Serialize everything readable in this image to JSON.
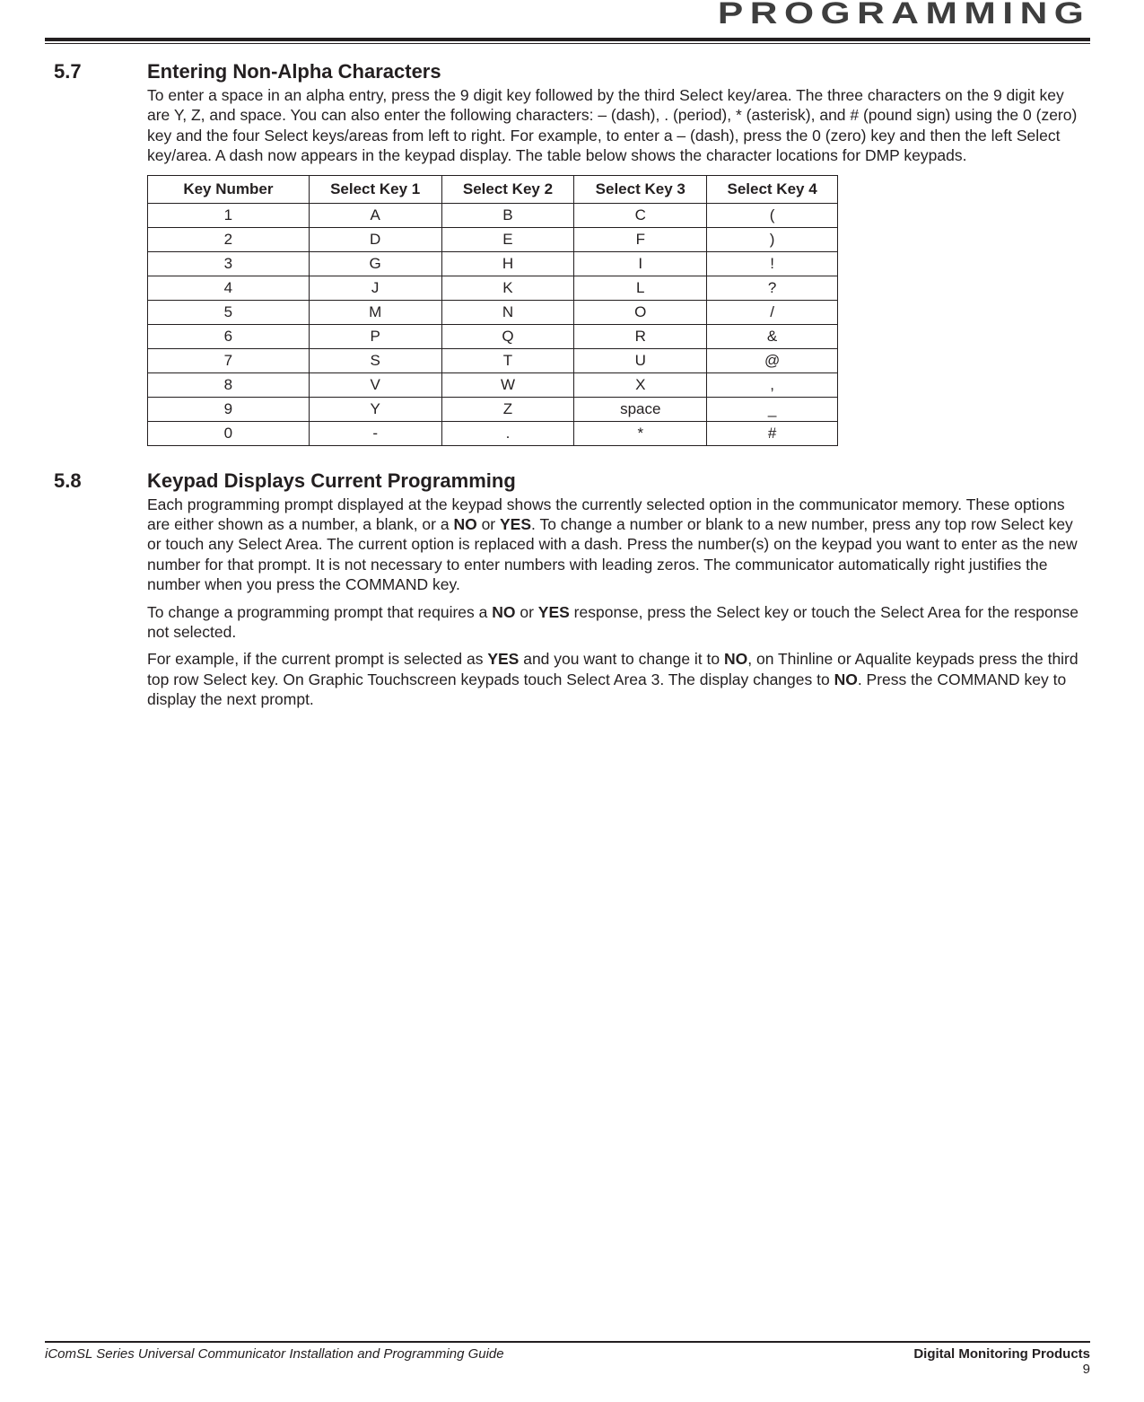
{
  "header": {
    "section_label": "PROGRAMMING"
  },
  "section_5_7": {
    "number": "5.7",
    "title": "Entering Non-Alpha Characters",
    "para1": "To enter a space in an alpha entry, press the 9 digit key followed by the third Select key/area. The three characters on the 9 digit key are Y, Z, and space. You can also enter the following characters: – (dash), . (period), * (asterisk), and # (pound sign) using the 0 (zero) key and the four Select keys/areas from left to right. For example, to enter a – (dash), press the 0 (zero) key and then the left Select key/area. A dash now appears in the keypad display. The table below shows the character locations for DMP keypads."
  },
  "char_table": {
    "columns": [
      "Key Number",
      "Select Key 1",
      "Select Key 2",
      "Select Key 3",
      "Select Key 4"
    ],
    "rows": [
      [
        "1",
        "A",
        "B",
        "C",
        "("
      ],
      [
        "2",
        "D",
        "E",
        "F",
        ")"
      ],
      [
        "3",
        "G",
        "H",
        "I",
        "!"
      ],
      [
        "4",
        "J",
        "K",
        "L",
        "?"
      ],
      [
        "5",
        "M",
        "N",
        "O",
        "/"
      ],
      [
        "6",
        "P",
        "Q",
        "R",
        "&"
      ],
      [
        "7",
        "S",
        "T",
        "U",
        "@"
      ],
      [
        "8",
        "V",
        "W",
        "X",
        ","
      ],
      [
        "9",
        "Y",
        "Z",
        "space",
        "_"
      ],
      [
        "0",
        "-",
        ".",
        "*",
        "#"
      ]
    ]
  },
  "section_5_8": {
    "number": "5.8",
    "title": "Keypad Displays Current Programming",
    "para1_a": "Each programming prompt displayed at the keypad shows the currently selected option in the communicator memory. These options are either shown as a number, a blank, or a ",
    "para1_no": "NO",
    "para1_b": " or ",
    "para1_yes": "YES",
    "para1_c": ". To change a number or blank to a new number, press any top row Select key or touch any Select Area. The current option is replaced with a dash. Press the number(s) on the keypad you want to enter as the new number for that prompt. It is not necessary to enter numbers with leading zeros. The communicator automatically right justifies the number when you press the COMMAND key.",
    "para2_a": "To change a programming prompt that requires a ",
    "para2_no": "NO",
    "para2_b": " or ",
    "para2_yes": "YES",
    "para2_c": " response, press the Select key or touch the Select Area for the response not selected.",
    "para3_a": "For example, if the current prompt is selected as ",
    "para3_yes": "YES",
    "para3_b": " and you want to change it to ",
    "para3_no": "NO",
    "para3_c": ", on Thinline or Aqualite keypads press the third top row Select key. On Graphic Touchscreen keypads touch Select Area 3. The display changes to ",
    "para3_no2": "NO",
    "para3_d": ". Press the COMMAND key to display the next prompt."
  },
  "footer": {
    "left": "iComSL Series Universal Communicator Installation and Programming Guide",
    "right": "Digital Monitoring Products",
    "page": "9"
  }
}
